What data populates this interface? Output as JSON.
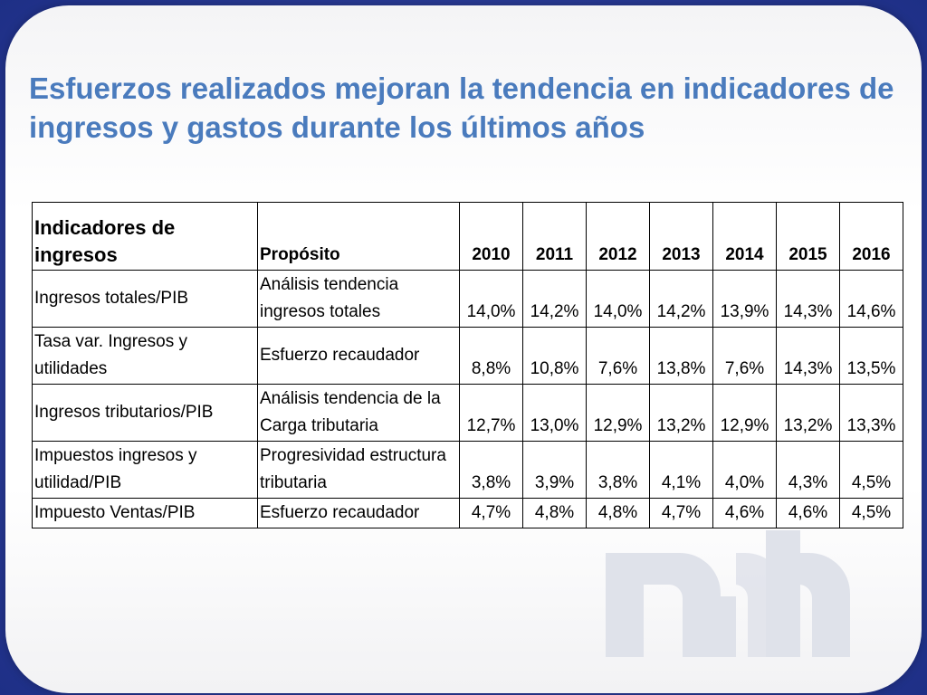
{
  "title": "Esfuerzos realizados mejoran la tendencia en indicadores de ingresos y gastos durante los últimos años",
  "table": {
    "headers": {
      "indicator": "Indicadores de ingresos",
      "purpose": "Propósito",
      "years": [
        "2010",
        "2011",
        "2012",
        "2013",
        "2014",
        "2015",
        "2016"
      ]
    },
    "rows": [
      {
        "indicator": "Ingresos totales/PIB",
        "purpose": "Análisis tendencia ingresos totales",
        "values": [
          "14,0%",
          "14,2%",
          "14,0%",
          "14,2%",
          "13,9%",
          "14,3%",
          "14,6%"
        ]
      },
      {
        "indicator": "Tasa var. Ingresos y utilidades",
        "purpose": "Esfuerzo recaudador",
        "values": [
          "8,8%",
          "10,8%",
          "7,6%",
          "13,8%",
          "7,6%",
          "14,3%",
          "13,5%"
        ]
      },
      {
        "indicator": "Ingresos tributarios/PIB",
        "purpose": "Análisis tendencia de la Carga tributaria",
        "values": [
          "12,7%",
          "13,0%",
          "12,9%",
          "13,2%",
          "12,9%",
          "13,2%",
          "13,3%"
        ]
      },
      {
        "indicator": "Impuestos ingresos y utilidad/PIB",
        "purpose": "Progresividad estructura tributaria",
        "values": [
          "3,8%",
          "3,9%",
          "3,8%",
          "4,1%",
          "4,0%",
          "4,3%",
          "4,5%"
        ]
      },
      {
        "indicator": "Impuesto Ventas/PIB",
        "purpose": "Esfuerzo recaudador",
        "values": [
          "4,7%",
          "4,8%",
          "4,8%",
          "4,7%",
          "4,6%",
          "4,6%",
          "4,5%"
        ]
      }
    ]
  },
  "logo": {
    "name": "mh-logo",
    "color": "#dfe2ea"
  }
}
